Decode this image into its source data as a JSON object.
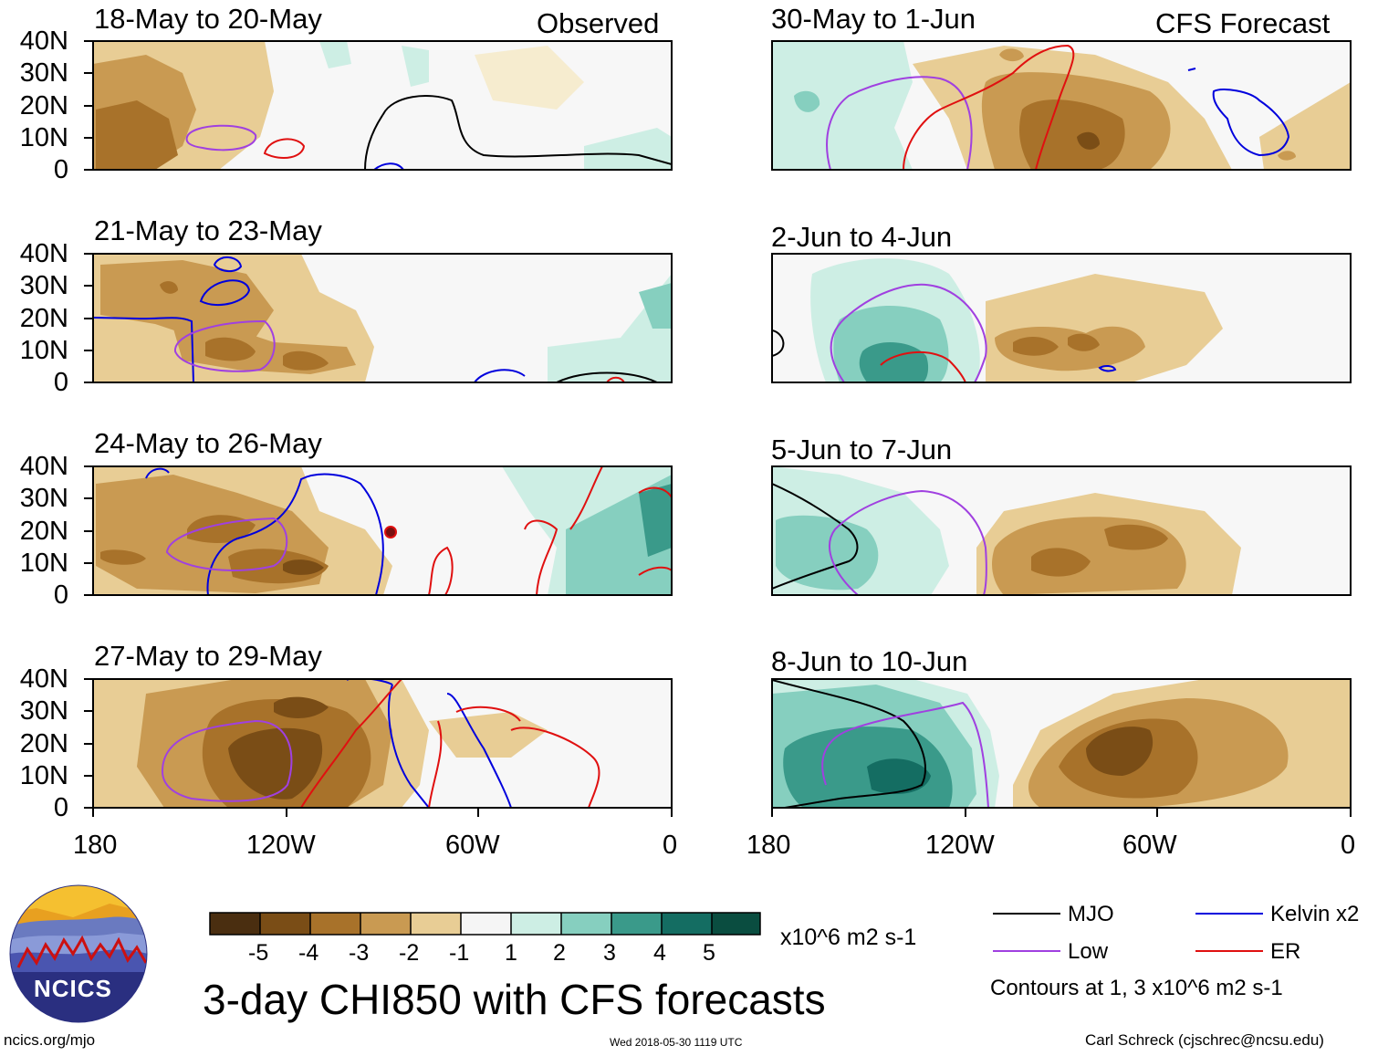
{
  "panels": {
    "left": [
      {
        "title": "18-May to 20-May",
        "tag": "Observed"
      },
      {
        "title": "21-May to 23-May",
        "tag": ""
      },
      {
        "title": "24-May to 26-May",
        "tag": ""
      },
      {
        "title": "27-May to 29-May",
        "tag": ""
      }
    ],
    "right": [
      {
        "title": "30-May to 1-Jun",
        "tag": "CFS Forecast"
      },
      {
        "title": "2-Jun to 4-Jun",
        "tag": ""
      },
      {
        "title": "5-Jun to 7-Jun",
        "tag": ""
      },
      {
        "title": "8-Jun to 10-Jun",
        "tag": ""
      }
    ]
  },
  "axes": {
    "lat_labels": [
      "40N",
      "30N",
      "20N",
      "10N",
      "0"
    ],
    "lon_labels": [
      "180",
      "120W",
      "60W",
      "0"
    ]
  },
  "colorbar": {
    "labels": [
      "-5",
      "-4",
      "-3",
      "-2",
      "-1",
      "1",
      "2",
      "3",
      "4",
      "5"
    ],
    "colors": [
      "#4a2e10",
      "#7a4d16",
      "#a8722a",
      "#c99a52",
      "#e8cd95",
      "#f6eccf",
      "#f5f5f5",
      "#cdeee4",
      "#86cfbf",
      "#3a9a8a",
      "#146d62",
      "#0a4d40"
    ],
    "units": "x10^6 m2 s-1"
  },
  "legend": {
    "items": [
      {
        "label": "MJO",
        "color": "#000000"
      },
      {
        "label": "Kelvin x2",
        "color": "#0000dd"
      },
      {
        "label": "Low",
        "color": "#a040e0"
      },
      {
        "label": "ER",
        "color": "#e01010"
      }
    ],
    "note": "Contours at 1, 3 x10^6 m2 s-1"
  },
  "footer": {
    "title": "3-day CHI850 with CFS forecasts",
    "site": "ncics.org/mjo",
    "timestamp": "Wed 2018-05-30 1119 UTC",
    "author": "Carl Schreck (cjschrec@ncsu.edu)",
    "logo_text": "NCICS"
  }
}
